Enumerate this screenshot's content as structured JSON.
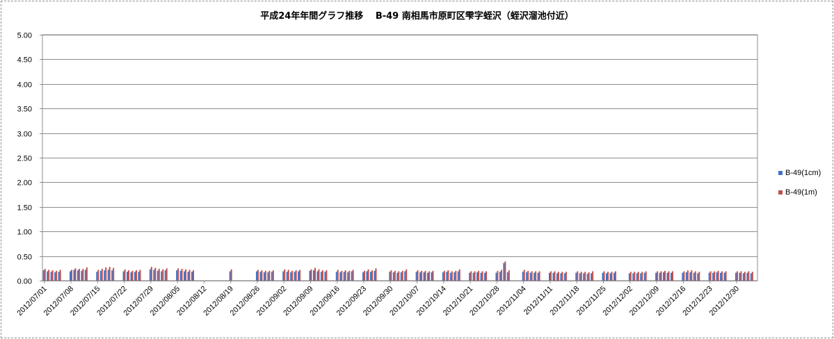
{
  "chart_data": {
    "type": "bar",
    "title": "平成24年年間グラフ推移　 B-49 南相馬市原町区雫字蛭沢（蛭沢溜池付近）",
    "xlabel": "",
    "ylabel": "",
    "ylim": [
      0,
      5
    ],
    "yticks": [
      "5.00",
      "4.50",
      "4.00",
      "3.50",
      "3.00",
      "2.50",
      "2.00",
      "1.50",
      "1.00",
      "0.50",
      "0.00"
    ],
    "x_range": [
      "2012/07/01",
      "2012/12/30"
    ],
    "x_tick_labels": [
      "2012/07/01",
      "2012/07/08",
      "2012/07/15",
      "2012/07/22",
      "2012/07/29",
      "2012/08/05",
      "2012/08/12",
      "2012/08/19",
      "2012/08/26",
      "2012/09/02",
      "2012/09/09",
      "2012/09/16",
      "2012/09/23",
      "2012/09/30",
      "2012/10/07",
      "2012/10/14",
      "2012/10/21",
      "2012/10/28",
      "2012/11/04",
      "2012/11/11",
      "2012/11/18",
      "2012/11/25",
      "2012/12/02",
      "2012/12/09",
      "2012/12/16",
      "2012/12/23",
      "2012/12/30"
    ],
    "grid": true,
    "legend_position": "right",
    "series": [
      {
        "name": "B-49(1cm)",
        "color": "#4472c4",
        "values": [
          0.21,
          0.19,
          0.18,
          0.17,
          0.18,
          null,
          null,
          0.19,
          0.22,
          0.21,
          0.2,
          0.22,
          null,
          null,
          0.18,
          0.2,
          0.21,
          0.22,
          0.21,
          null,
          null,
          0.19,
          0.18,
          0.17,
          0.18,
          0.18,
          null,
          null,
          0.23,
          0.22,
          0.2,
          0.19,
          0.21,
          null,
          null,
          0.21,
          0.2,
          0.19,
          0.18,
          0.18,
          null,
          null,
          null,
          null,
          null,
          null,
          null,
          null,
          null,
          0.19,
          null,
          null,
          null,
          null,
          null,
          null,
          0.19,
          0.18,
          0.17,
          0.17,
          0.18,
          null,
          null,
          0.19,
          0.18,
          0.17,
          0.18,
          0.19,
          null,
          null,
          0.2,
          0.21,
          0.19,
          0.18,
          0.18,
          null,
          null,
          0.18,
          0.17,
          0.18,
          0.17,
          0.19,
          null,
          null,
          0.17,
          0.19,
          0.18,
          0.2,
          null,
          null,
          null,
          0.18,
          0.17,
          0.16,
          0.17,
          0.19,
          null,
          null,
          0.18,
          0.17,
          0.17,
          0.16,
          0.17,
          null,
          null,
          0.17,
          0.18,
          0.16,
          0.17,
          0.19,
          null,
          null,
          0.16,
          0.16,
          0.17,
          0.16,
          0.16,
          null,
          null,
          0.16,
          0.18,
          0.36,
          0.17,
          null,
          null,
          null,
          0.18,
          0.17,
          0.16,
          0.16,
          0.16,
          null,
          null,
          0.16,
          0.16,
          0.15,
          0.15,
          0.15,
          null,
          null,
          0.16,
          0.15,
          0.15,
          0.14,
          0.15,
          null,
          null,
          0.16,
          0.15,
          0.15,
          0.16,
          null,
          null,
          null,
          0.15,
          0.15,
          0.15,
          0.15,
          0.16,
          null,
          null,
          0.16,
          0.16,
          0.17,
          0.16,
          0.16,
          null,
          null,
          0.16,
          0.17,
          0.17,
          0.16,
          0.15,
          null,
          null,
          0.16,
          0.16,
          0.17,
          0.16,
          0.16,
          null,
          null,
          0.16,
          0.16,
          0.15,
          0.16,
          0.15,
          null
        ]
      },
      {
        "name": "B-49(1m)",
        "color": "#c0504d",
        "values": [
          0.24,
          0.22,
          0.21,
          0.2,
          0.22,
          null,
          null,
          0.22,
          0.25,
          0.24,
          0.24,
          0.27,
          null,
          null,
          0.22,
          0.24,
          0.27,
          0.28,
          0.26,
          null,
          null,
          0.23,
          0.21,
          0.2,
          0.21,
          0.22,
          null,
          null,
          0.28,
          0.26,
          0.24,
          0.23,
          0.25,
          null,
          null,
          0.25,
          0.24,
          0.23,
          0.22,
          0.21,
          null,
          null,
          null,
          null,
          null,
          null,
          null,
          null,
          null,
          0.23,
          null,
          null,
          null,
          null,
          null,
          null,
          0.22,
          0.21,
          0.2,
          0.2,
          0.21,
          null,
          null,
          0.23,
          0.22,
          0.2,
          0.21,
          0.22,
          null,
          null,
          0.23,
          0.26,
          0.23,
          0.21,
          0.21,
          null,
          null,
          0.22,
          0.2,
          0.21,
          0.2,
          0.22,
          null,
          null,
          0.2,
          0.23,
          0.21,
          0.25,
          null,
          null,
          null,
          0.21,
          0.2,
          0.19,
          0.2,
          0.23,
          null,
          null,
          0.21,
          0.2,
          0.2,
          0.19,
          0.2,
          null,
          null,
          0.2,
          0.21,
          0.19,
          0.2,
          0.23,
          null,
          null,
          0.19,
          0.19,
          0.2,
          0.19,
          0.19,
          null,
          null,
          0.2,
          0.22,
          0.39,
          0.21,
          null,
          null,
          null,
          0.22,
          0.2,
          0.19,
          0.19,
          0.19,
          null,
          null,
          0.19,
          0.19,
          0.18,
          0.18,
          0.18,
          null,
          null,
          0.19,
          0.18,
          0.18,
          0.17,
          0.19,
          null,
          null,
          0.19,
          0.18,
          0.18,
          0.19,
          null,
          null,
          null,
          0.18,
          0.18,
          0.18,
          0.18,
          0.19,
          null,
          null,
          0.19,
          0.19,
          0.2,
          0.19,
          0.19,
          null,
          null,
          0.19,
          0.21,
          0.21,
          0.19,
          0.18,
          null,
          null,
          0.19,
          0.19,
          0.2,
          0.19,
          0.19,
          null,
          null,
          0.19,
          0.19,
          0.18,
          0.19,
          0.18,
          null
        ]
      }
    ]
  }
}
